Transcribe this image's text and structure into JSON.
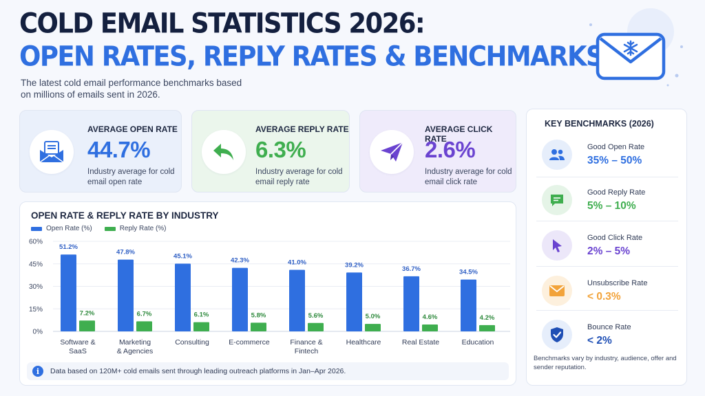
{
  "title": {
    "line1": "COLD EMAIL STATISTICS 2026:",
    "line2": "OPEN RATES, REPLY RATES & BENCHMARKS"
  },
  "subtitle": "The latest cold email performance benchmarks based on millions of emails sent in 2026.",
  "colors": {
    "blue": "#2f6fe0",
    "green": "#3fae4f",
    "purple": "#6a43d0",
    "orange": "#f2a33a"
  },
  "cards": [
    {
      "label": "AVERAGE OPEN RATE",
      "value": "44.7%",
      "desc": "Industry average for cold email open rate",
      "icon": "envelope-open-icon"
    },
    {
      "label": "AVERAGE REPLY RATE",
      "value": "6.3%",
      "desc": "Industry average for cold email reply rate",
      "icon": "reply-arrow-icon"
    },
    {
      "label": "AVERAGE CLICK RATE",
      "value": "2.6%",
      "desc": "Industry average for cold email click rate",
      "icon": "paper-plane-icon"
    }
  ],
  "chart_data": {
    "type": "bar",
    "title": "OPEN RATE & REPLY RATE BY INDUSTRY",
    "categories": [
      "Software & SaaS",
      "Marketing & Agencies",
      "Consulting",
      "E-commerce",
      "Finance & Fintech",
      "Healthcare",
      "Real Estate",
      "Education"
    ],
    "category_lines": [
      [
        "Software &",
        "SaaS"
      ],
      [
        "Marketing",
        "& Agencies"
      ],
      [
        "Consulting"
      ],
      [
        "E-commerce"
      ],
      [
        "Finance &",
        "Fintech"
      ],
      [
        "Healthcare"
      ],
      [
        "Real Estate"
      ],
      [
        "Education"
      ]
    ],
    "series": [
      {
        "name": "Open Rate (%)",
        "values": [
          51.2,
          47.8,
          45.1,
          42.3,
          41.0,
          39.2,
          36.7,
          34.5
        ],
        "labels": [
          "51.2%",
          "47.8%",
          "45.1%",
          "42.3%",
          "41.0%",
          "39.2%",
          "36.7%",
          "34.5%"
        ],
        "color": "#2f6fe0"
      },
      {
        "name": "Reply Rate (%)",
        "values": [
          7.2,
          6.7,
          6.1,
          5.8,
          5.6,
          5.0,
          4.6,
          4.2
        ],
        "labels": [
          "7.2%",
          "6.7%",
          "6.1%",
          "5.8%",
          "5.6%",
          "5.0%",
          "4.6%",
          "4.2%"
        ],
        "color": "#3fae4f"
      }
    ],
    "yticks": [
      0,
      15,
      30,
      45,
      60
    ],
    "ytick_labels": [
      "0%",
      "15%",
      "30%",
      "45%",
      "60%"
    ],
    "ylim": [
      0,
      60
    ],
    "grid": true,
    "legend": "top-left"
  },
  "footnote": "Data based on 120M+ cold emails sent through leading outreach platforms in Jan–Apr 2026.",
  "benchmarks": {
    "title": "KEY BENCHMARKS (2026)",
    "items": [
      {
        "name": "Good Open Rate",
        "range": "35% – 50%",
        "icon": "users-icon",
        "color": "#2f6fe0",
        "bg": "#e6eefb"
      },
      {
        "name": "Good Reply Rate",
        "range": "5% – 10%",
        "icon": "chat-bubble-icon",
        "color": "#3fae4f",
        "bg": "#e5f4e7"
      },
      {
        "name": "Good Click Rate",
        "range": "2% – 5%",
        "icon": "cursor-icon",
        "color": "#6a43d0",
        "bg": "#ece7f9"
      },
      {
        "name": "Unsubscribe Rate",
        "range": "< 0.3%",
        "icon": "envelope-icon",
        "color": "#f2a33a",
        "bg": "#fdf0dd"
      },
      {
        "name": "Bounce Rate",
        "range": "< 2%",
        "icon": "shield-check-icon",
        "color": "#2f6fe0",
        "bg": "#e6eefb"
      }
    ],
    "note": "Benchmarks vary by industry, audience, offer and sender reputation."
  }
}
